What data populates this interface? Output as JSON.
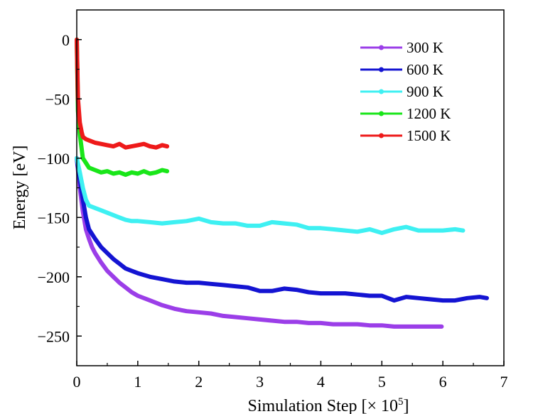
{
  "chart_data": {
    "type": "line",
    "xlabel": "Simulation Step [× 10",
    "xlabel_sup": "5",
    "xlabel_tail": "]",
    "ylabel": "Energy [eV]",
    "xlim": [
      0,
      7
    ],
    "ylim": [
      -275,
      25
    ],
    "x_ticks": [
      0,
      1,
      2,
      3,
      4,
      5,
      6,
      7
    ],
    "x_tick_labels": [
      "0",
      "1",
      "2",
      "3",
      "4",
      "5",
      "6",
      "7"
    ],
    "y_ticks": [
      0,
      -50,
      -100,
      -150,
      -200,
      -250
    ],
    "y_tick_labels": [
      "0",
      "−50",
      "−100",
      "−150",
      "−200",
      "−250"
    ],
    "grid": false,
    "legend_position": "top-right",
    "series": [
      {
        "name": "300 K",
        "color": "#9B3EE8",
        "x": [
          0,
          0.05,
          0.1,
          0.15,
          0.2,
          0.25,
          0.3,
          0.4,
          0.5,
          0.6,
          0.7,
          0.8,
          0.9,
          1.0,
          1.2,
          1.4,
          1.6,
          1.8,
          2.0,
          2.2,
          2.4,
          2.6,
          2.8,
          3.0,
          3.2,
          3.4,
          3.6,
          3.8,
          4.0,
          4.2,
          4.4,
          4.6,
          4.8,
          5.0,
          5.2,
          5.4,
          5.6,
          5.8,
          5.98
        ],
        "y": [
          -100,
          -125,
          -145,
          -160,
          -168,
          -175,
          -180,
          -188,
          -195,
          -200,
          -205,
          -209,
          -213,
          -216,
          -220,
          -224,
          -227,
          -229,
          -230,
          -231,
          -233,
          -234,
          -235,
          -236,
          -237,
          -238,
          -238,
          -239,
          -239,
          -240,
          -240,
          -240,
          -241,
          -241,
          -242,
          -242,
          -242,
          -242,
          -242
        ]
      },
      {
        "name": "600 K",
        "color": "#1414D2",
        "x": [
          0,
          0.05,
          0.1,
          0.15,
          0.2,
          0.3,
          0.4,
          0.5,
          0.6,
          0.7,
          0.8,
          0.9,
          1.0,
          1.2,
          1.4,
          1.6,
          1.8,
          2.0,
          2.2,
          2.4,
          2.6,
          2.8,
          3.0,
          3.2,
          3.4,
          3.6,
          3.8,
          4.0,
          4.2,
          4.4,
          4.6,
          4.8,
          5.0,
          5.2,
          5.4,
          5.6,
          5.8,
          6.0,
          6.2,
          6.4,
          6.6,
          6.72
        ],
        "y": [
          -100,
          -118,
          -135,
          -150,
          -160,
          -168,
          -175,
          -180,
          -185,
          -189,
          -193,
          -195,
          -197,
          -200,
          -202,
          -204,
          -205,
          -205,
          -206,
          -207,
          -208,
          -209,
          -212,
          -212,
          -210,
          -211,
          -213,
          -214,
          -214,
          -214,
          -215,
          -216,
          -216,
          -220,
          -217,
          -218,
          -219,
          -220,
          -220,
          -218,
          -217,
          -218
        ]
      },
      {
        "name": "900 K",
        "color": "#3EF0F2",
        "x": [
          0,
          0.05,
          0.1,
          0.15,
          0.2,
          0.3,
          0.4,
          0.5,
          0.6,
          0.7,
          0.8,
          0.9,
          1.0,
          1.2,
          1.4,
          1.6,
          1.8,
          2.0,
          2.2,
          2.4,
          2.6,
          2.8,
          3.0,
          3.2,
          3.4,
          3.6,
          3.8,
          4.0,
          4.2,
          4.4,
          4.6,
          4.8,
          5.0,
          5.2,
          5.4,
          5.6,
          5.8,
          6.0,
          6.2,
          6.33
        ],
        "y": [
          -100,
          -112,
          -125,
          -135,
          -140,
          -142,
          -144,
          -146,
          -148,
          -150,
          -152,
          -153,
          -153,
          -154,
          -155,
          -154,
          -153,
          -151,
          -154,
          -155,
          -155,
          -157,
          -157,
          -154,
          -155,
          -156,
          -159,
          -159,
          -160,
          -161,
          -162,
          -160,
          -163,
          -160,
          -158,
          -161,
          -161,
          -161,
          -160,
          -161
        ]
      },
      {
        "name": "1200 K",
        "color": "#19E619",
        "x": [
          0,
          0.02,
          0.05,
          0.08,
          0.1,
          0.15,
          0.2,
          0.3,
          0.4,
          0.5,
          0.6,
          0.7,
          0.8,
          0.9,
          1.0,
          1.1,
          1.2,
          1.3,
          1.4,
          1.48
        ],
        "y": [
          0,
          -60,
          -80,
          -92,
          -100,
          -104,
          -108,
          -110,
          -112,
          -111,
          -113,
          -112,
          -114,
          -112,
          -113,
          -111,
          -113,
          -112,
          -110,
          -111
        ]
      },
      {
        "name": "1500 K",
        "color": "#EE1A1A",
        "x": [
          0,
          0.02,
          0.05,
          0.08,
          0.1,
          0.15,
          0.2,
          0.3,
          0.4,
          0.5,
          0.6,
          0.7,
          0.8,
          0.9,
          1.0,
          1.1,
          1.2,
          1.3,
          1.4,
          1.48
        ],
        "y": [
          0,
          -50,
          -70,
          -78,
          -82,
          -84,
          -85,
          -87,
          -88,
          -89,
          -90,
          -88,
          -91,
          -90,
          -89,
          -88,
          -90,
          -91,
          -89,
          -90
        ]
      }
    ]
  }
}
